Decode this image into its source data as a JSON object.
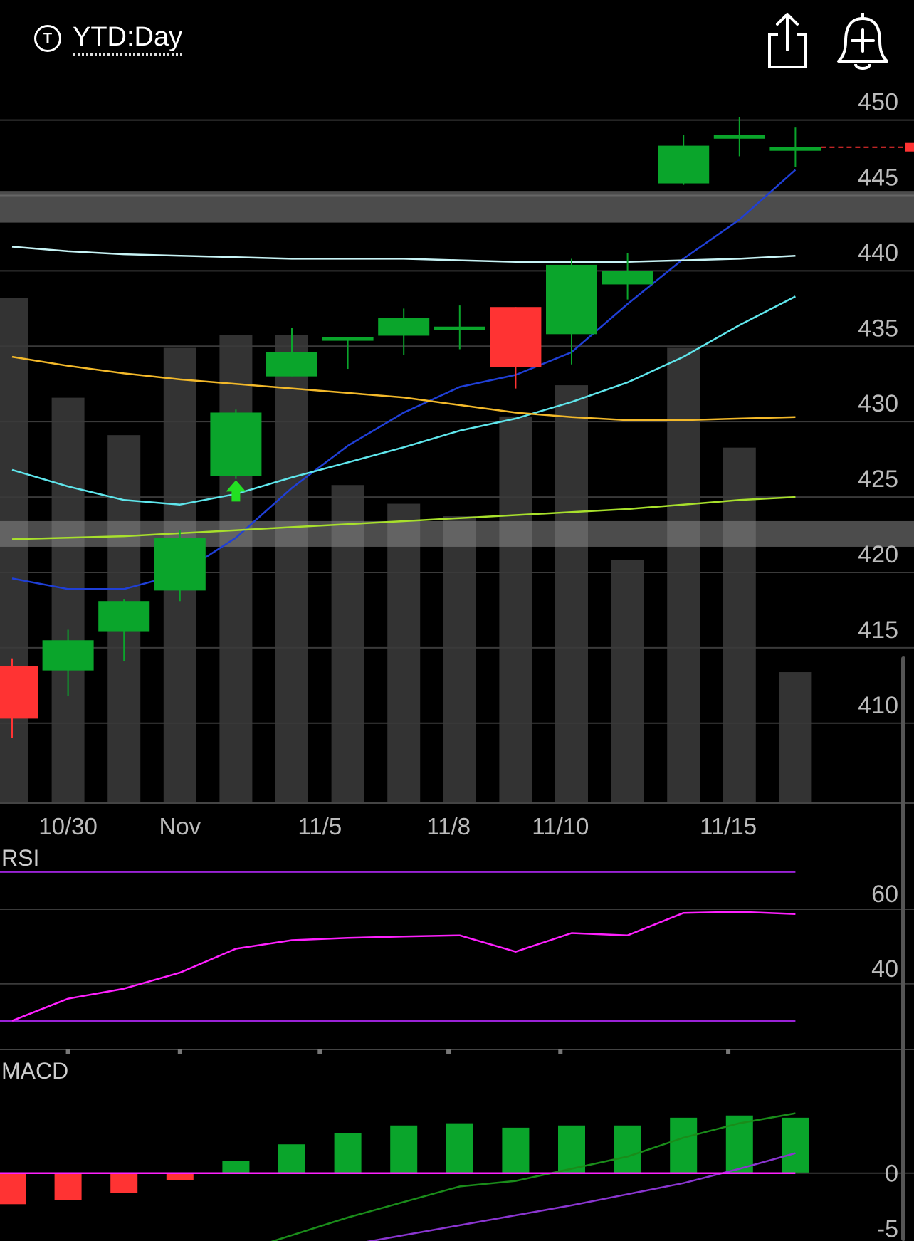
{
  "header": {
    "ticker_icon_letter": "T",
    "title": "YTD:Day",
    "share_icon": "share-icon",
    "alert_icon": "bell-plus-icon"
  },
  "colors": {
    "up": "#0aa52b",
    "down": "#ff3333",
    "volume": "#333333",
    "grid": "#3a3a3a",
    "ma_blue": "#1f3fd6",
    "ma_cyan": "#5fe6ec",
    "ma_orange": "#f3b92a",
    "ma_white": "#c8f4f6",
    "ma_lime": "#a8e02c",
    "rsi_line": "#ff20ff",
    "rsi_band": "#9a22d6",
    "macd_line": "#1a8c1a",
    "macd_signal": "#8a35d0",
    "macd_zero": "#ff20ff"
  },
  "chart_data": [
    {
      "type": "candlestick",
      "title": "",
      "y_ticks": [
        450,
        445,
        440,
        435,
        430,
        425,
        420,
        415,
        410
      ],
      "ylim": [
        404.7,
        452.2
      ],
      "x_ticks": [
        {
          "label": "10/30",
          "index": 1
        },
        {
          "label": "Nov",
          "index": 3
        },
        {
          "label": "11/5",
          "index": 5.5
        },
        {
          "label": "11/8",
          "index": 7.8
        },
        {
          "label": "11/10",
          "index": 9.8
        },
        {
          "label": "11/15",
          "index": 12.8
        }
      ],
      "candles": [
        {
          "open": 413.8,
          "high": 414.3,
          "low": 409.0,
          "close": 410.3
        },
        {
          "open": 413.5,
          "high": 416.2,
          "low": 411.8,
          "close": 415.5
        },
        {
          "open": 416.1,
          "high": 418.2,
          "low": 414.1,
          "close": 418.1
        },
        {
          "open": 418.8,
          "high": 422.8,
          "low": 418.1,
          "close": 422.3
        },
        {
          "open": 426.4,
          "high": 430.8,
          "low": 426.2,
          "close": 430.6
        },
        {
          "open": 433.0,
          "high": 436.2,
          "low": 433.0,
          "close": 434.6
        },
        {
          "open": 435.4,
          "high": 435.6,
          "low": 433.5,
          "close": 435.6
        },
        {
          "open": 435.7,
          "high": 437.5,
          "low": 434.4,
          "close": 436.9
        },
        {
          "open": 436.3,
          "high": 437.7,
          "low": 434.8,
          "close": 436.3
        },
        {
          "open": 437.6,
          "high": 437.6,
          "low": 432.2,
          "close": 433.6
        },
        {
          "open": 435.8,
          "high": 440.8,
          "low": 433.8,
          "close": 440.4
        },
        {
          "open": 439.1,
          "high": 441.2,
          "low": 438.1,
          "close": 440.0
        },
        {
          "open": 445.8,
          "high": 449.0,
          "low": 445.7,
          "close": 448.3
        },
        {
          "open": 449.0,
          "high": 450.2,
          "low": 447.6,
          "close": 449.0
        },
        {
          "open": 448.2,
          "high": 449.5,
          "low": 446.9,
          "close": 448.2
        }
      ],
      "last_price": 448.2,
      "volume_relative": [
        0.81,
        0.65,
        0.59,
        0.73,
        0.75,
        0.75,
        0.51,
        0.48,
        0.46,
        0.62,
        0.67,
        0.39,
        0.73,
        0.57,
        0.21
      ],
      "moving_averages": [
        {
          "color_key": "ma_blue",
          "values": [
            419.6,
            418.9,
            418.9,
            419.9,
            422.3,
            425.6,
            428.4,
            430.6,
            432.3,
            433.1,
            434.6,
            437.8,
            440.8,
            443.4,
            446.7
          ]
        },
        {
          "color_key": "ma_cyan",
          "values": [
            426.8,
            425.7,
            424.8,
            424.5,
            425.2,
            426.3,
            427.3,
            428.3,
            429.4,
            430.2,
            431.3,
            432.6,
            434.3,
            436.4,
            438.3
          ]
        },
        {
          "color_key": "ma_orange",
          "values": [
            434.3,
            433.7,
            433.2,
            432.8,
            432.5,
            432.2,
            431.9,
            431.6,
            431.1,
            430.6,
            430.3,
            430.1,
            430.1,
            430.2,
            430.3
          ]
        },
        {
          "color_key": "ma_white",
          "values": [
            441.6,
            441.3,
            441.1,
            441.0,
            440.9,
            440.8,
            440.8,
            440.8,
            440.7,
            440.6,
            440.6,
            440.6,
            440.7,
            440.8,
            441.0
          ]
        },
        {
          "color_key": "ma_lime",
          "values": [
            422.2,
            422.3,
            422.4,
            422.6,
            422.8,
            423.0,
            423.2,
            423.4,
            423.6,
            423.8,
            424.0,
            424.2,
            424.5,
            424.8,
            425.0
          ]
        }
      ],
      "shaded_zones": [
        {
          "low": 443.2,
          "high": 445.3
        },
        {
          "low": 421.7,
          "high": 423.4
        }
      ]
    },
    {
      "type": "line",
      "title": "RSI",
      "y_ticks": [
        60,
        40
      ],
      "ylim": [
        22.4,
        76.6
      ],
      "bands": [
        70,
        30
      ],
      "values": [
        30.1,
        36.0,
        38.7,
        43.0,
        49.4,
        51.7,
        52.3,
        52.7,
        53.0,
        48.6,
        53.6,
        53.0,
        59.0,
        59.3,
        58.7
      ]
    },
    {
      "type": "bar",
      "title": "MACD",
      "y_ticks": [
        0,
        -5
      ],
      "ylim": [
        -6.12,
        10.45
      ],
      "histogram": [
        -2.8,
        -2.4,
        -1.8,
        -0.6,
        1.1,
        2.6,
        3.6,
        4.3,
        4.5,
        4.1,
        4.3,
        4.3,
        5.0,
        5.2,
        5.0
      ],
      "macd_line": [
        -11.3,
        -10.6,
        -9.7,
        -8.6,
        -7.2,
        -5.6,
        -4.0,
        -2.6,
        -1.2,
        -0.7,
        0.4,
        1.5,
        3.2,
        4.5,
        5.4
      ],
      "signal_line": [
        -7.3,
        -7.8,
        -8.3,
        -8.0,
        -7.7,
        -7.2,
        -6.5,
        -5.6,
        -4.7,
        -3.8,
        -2.9,
        -1.9,
        -0.9,
        0.4,
        1.8
      ]
    }
  ]
}
